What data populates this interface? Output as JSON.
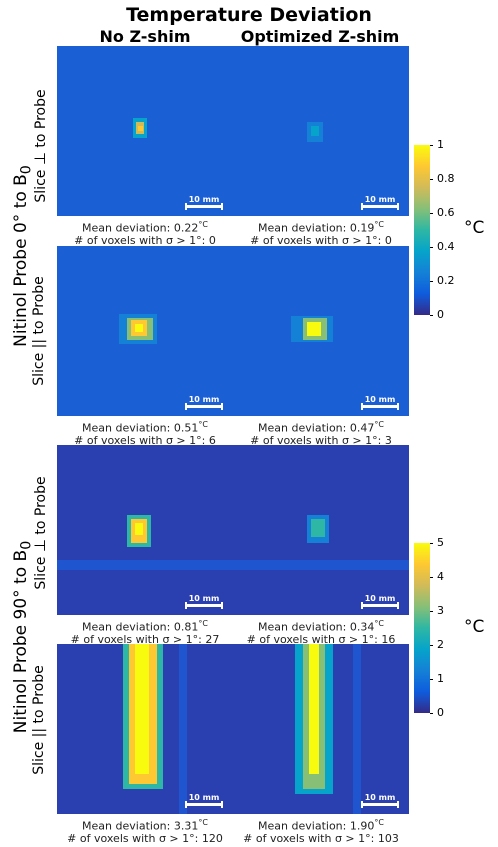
{
  "title": "Temperature Deviation",
  "columns": [
    "No Z-shim",
    "Optimized Z-shim"
  ],
  "group_labels": {
    "top_html": "Nitinol Probe 0° to B<sub>0</sub>",
    "bottom_html": "Nitinol Probe 90° to B<sub>0</sub>"
  },
  "row_labels": {
    "perp_html": "Slice <span style=\"font-size:15px\">⊥</span> to Probe",
    "para_html": "Slice || to Probe"
  },
  "scalebar_label": "10 mm",
  "captions": [
    {
      "mean": "Mean deviation: 0.22",
      "count": "# of voxels with σ > 1°: 0"
    },
    {
      "mean": "Mean deviation: 0.19",
      "count": "# of voxels with σ > 1°: 0"
    },
    {
      "mean": "Mean deviation: 0.51",
      "count": "# of voxels with σ > 1°: 6"
    },
    {
      "mean": "Mean deviation: 0.47",
      "count": "# of voxels with σ > 1°: 3"
    },
    {
      "mean": "Mean deviation: 0.81",
      "count": "# of voxels with σ > 1°: 27"
    },
    {
      "mean": "Mean deviation: 0.34",
      "count": "# of voxels with σ > 1°: 16"
    },
    {
      "mean": "Mean deviation: 3.31",
      "count": "# of voxels with σ > 1°: 120"
    },
    {
      "mean": "Mean deviation: 1.90",
      "count": "# of voxels with σ > 1°: 103"
    }
  ],
  "mean_unit": "°C",
  "colorbar_top": {
    "ticks": [
      "1",
      "0.8",
      "0.6",
      "0.4",
      "0.2",
      "0"
    ],
    "unit": "°C"
  },
  "colorbar_bottom": {
    "ticks": [
      "5",
      "4",
      "3",
      "2",
      "1",
      "0"
    ],
    "unit": "°C"
  },
  "colormap": [
    "#352a87",
    "#0f5cdd",
    "#1481d6",
    "#06a4ca",
    "#2eb7a4",
    "#87bf77",
    "#d1bb59",
    "#fec832",
    "#f9fb0e"
  ]
}
